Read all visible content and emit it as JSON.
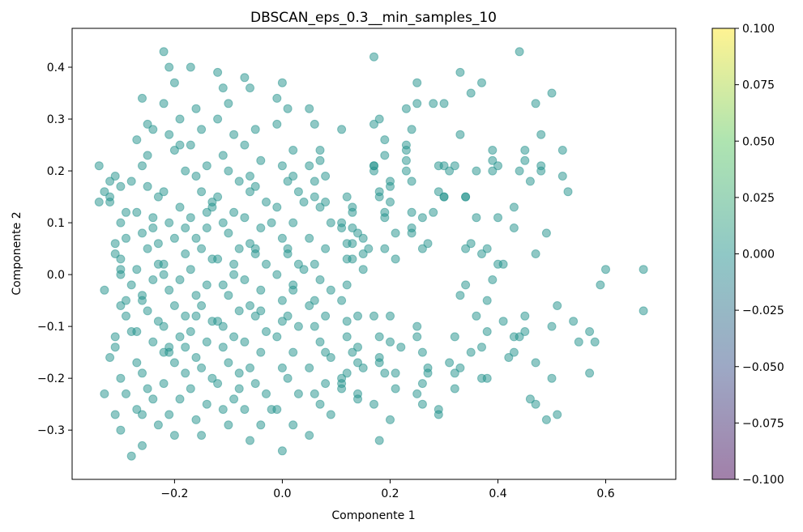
{
  "chart_data": {
    "type": "scatter",
    "title": "DBSCAN_eps_0.3__min_samples_10",
    "xlabel": "Componente 1",
    "ylabel": "Componente 2",
    "xlim": [
      -0.39,
      0.73
    ],
    "ylim": [
      -0.395,
      0.475
    ],
    "xticks": [
      -0.2,
      0.0,
      0.2,
      0.4,
      0.6
    ],
    "xtick_labels": [
      "−0.2",
      "0.0",
      "0.2",
      "0.4",
      "0.6"
    ],
    "yticks": [
      0.4,
      0.3,
      0.2,
      0.1,
      0.0,
      -0.1,
      -0.2,
      -0.3
    ],
    "ytick_labels": [
      "0.4",
      "0.3",
      "0.2",
      "0.1",
      "0.0",
      "−0.1",
      "−0.2",
      "−0.3"
    ],
    "grid": false,
    "point_color": "#21918c",
    "point_alpha": 0.5,
    "colorbar": {
      "colormap": "viridis",
      "range": [
        -0.1,
        0.1
      ],
      "ticks": [
        0.1,
        0.075,
        0.05,
        0.025,
        0.0,
        -0.025,
        -0.05,
        -0.075,
        -0.1
      ],
      "tick_labels": [
        "0.100",
        "0.075",
        "0.050",
        "0.025",
        "0.000",
        "−0.025",
        "−0.050",
        "−0.075",
        "−0.100"
      ],
      "colors": [
        "#440154",
        "#3b528b",
        "#21918c",
        "#5ec962",
        "#fde725"
      ]
    },
    "series": [
      {
        "x": [
          -0.34,
          -0.32,
          -0.33,
          -0.31,
          -0.3,
          -0.32,
          -0.29,
          -0.31,
          -0.3,
          -0.28,
          -0.33,
          -0.3,
          -0.29,
          -0.31,
          -0.28,
          -0.32,
          -0.3,
          -0.29,
          -0.31,
          -0.3,
          -0.32,
          -0.29,
          -0.3,
          -0.31,
          -0.33,
          -0.3,
          -0.29,
          -0.31,
          -0.28,
          -0.27,
          -0.26,
          -0.25,
          -0.27,
          -0.24,
          -0.26,
          -0.25,
          -0.23,
          -0.27,
          -0.24,
          -0.26,
          -0.25,
          -0.23,
          -0.27,
          -0.24,
          -0.26,
          -0.25,
          -0.23,
          -0.27,
          -0.24,
          -0.22,
          -0.26,
          -0.25,
          -0.24,
          -0.27,
          -0.23,
          -0.26,
          -0.25,
          -0.28,
          -0.24,
          -0.26,
          -0.22,
          -0.21,
          -0.2,
          -0.22,
          -0.19,
          -0.21,
          -0.2,
          -0.18,
          -0.22,
          -0.19,
          -0.21,
          -0.2,
          -0.18,
          -0.22,
          -0.19,
          -0.21,
          -0.2,
          -0.18,
          -0.22,
          -0.19,
          -0.21,
          -0.2,
          -0.18,
          -0.22,
          -0.19,
          -0.21,
          -0.2,
          -0.23,
          -0.19,
          -0.21,
          -0.17,
          -0.16,
          -0.15,
          -0.17,
          -0.14,
          -0.16,
          -0.15,
          -0.13,
          -0.17,
          -0.14,
          -0.16,
          -0.15,
          -0.13,
          -0.17,
          -0.14,
          -0.16,
          -0.15,
          -0.13,
          -0.17,
          -0.14,
          -0.16,
          -0.15,
          -0.13,
          -0.17,
          -0.14,
          -0.16,
          -0.15,
          -0.18,
          -0.14,
          -0.16,
          -0.12,
          -0.11,
          -0.1,
          -0.12,
          -0.09,
          -0.11,
          -0.1,
          -0.08,
          -0.12,
          -0.09,
          -0.11,
          -0.1,
          -0.08,
          -0.12,
          -0.09,
          -0.11,
          -0.1,
          -0.08,
          -0.12,
          -0.09,
          -0.11,
          -0.1,
          -0.08,
          -0.12,
          -0.09,
          -0.11,
          -0.1,
          -0.13,
          -0.09,
          -0.11,
          -0.07,
          -0.06,
          -0.05,
          -0.07,
          -0.04,
          -0.06,
          -0.05,
          -0.03,
          -0.07,
          -0.04,
          -0.06,
          -0.05,
          -0.03,
          -0.07,
          -0.04,
          -0.06,
          -0.05,
          -0.03,
          -0.07,
          -0.04,
          -0.06,
          -0.05,
          -0.03,
          -0.07,
          -0.04,
          -0.06,
          -0.05,
          -0.02,
          -0.04,
          -0.06,
          -0.01,
          0.0,
          0.01,
          -0.01,
          0.02,
          0.0,
          0.01,
          0.03,
          -0.01,
          0.02,
          0.0,
          0.01,
          0.03,
          -0.01,
          0.02,
          0.0,
          0.01,
          0.03,
          -0.01,
          0.02,
          0.0,
          0.01,
          0.03,
          -0.01,
          0.02,
          0.0,
          0.01,
          0.04,
          0.02,
          0.0,
          0.05,
          0.06,
          0.07,
          0.05,
          0.08,
          0.06,
          0.07,
          0.09,
          0.05,
          0.08,
          0.06,
          0.07,
          0.09,
          0.05,
          0.08,
          0.06,
          0.07,
          0.09,
          0.05,
          0.08,
          0.06,
          0.07,
          0.09,
          0.05,
          0.08,
          0.06,
          0.07,
          0.04,
          0.08,
          0.06,
          0.11,
          0.12,
          0.13,
          0.11,
          0.14,
          0.12,
          0.13,
          0.15,
          0.11,
          0.14,
          0.12,
          0.13,
          0.15,
          0.11,
          0.14,
          0.12,
          0.13,
          0.15,
          0.11,
          0.14,
          0.12,
          0.13,
          0.15,
          0.11,
          0.14,
          0.12,
          0.13,
          0.16,
          0.14,
          0.12,
          0.17,
          0.18,
          0.19,
          0.17,
          0.2,
          0.18,
          0.19,
          0.21,
          0.17,
          0.2,
          0.18,
          0.19,
          0.21,
          0.17,
          0.2,
          0.18,
          0.19,
          0.21,
          0.17,
          0.2,
          0.18,
          0.19,
          0.21,
          0.17,
          0.2,
          0.18,
          0.19,
          0.22,
          0.2,
          0.18,
          0.23,
          0.24,
          0.25,
          0.23,
          0.26,
          0.24,
          0.25,
          0.27,
          0.23,
          0.26,
          0.24,
          0.25,
          0.27,
          0.23,
          0.26,
          0.24,
          0.25,
          0.27,
          0.23,
          0.26,
          0.24,
          0.25,
          0.28,
          0.29,
          0.3,
          0.29,
          0.3,
          0.28,
          0.31,
          0.29,
          0.3,
          0.31,
          0.29,
          0.3,
          0.32,
          0.33,
          0.34,
          0.32,
          0.35,
          0.33,
          0.34,
          0.36,
          0.32,
          0.35,
          0.33,
          0.34,
          0.36,
          0.32,
          0.35,
          0.33,
          0.34,
          0.36,
          0.37,
          0.38,
          0.39,
          0.37,
          0.4,
          0.38,
          0.39,
          0.41,
          0.37,
          0.4,
          0.38,
          0.39,
          0.41,
          0.37,
          0.4,
          0.38,
          0.39,
          0.42,
          0.43,
          0.44,
          0.45,
          0.43,
          0.46,
          0.44,
          0.45,
          0.47,
          0.43,
          0.46,
          0.44,
          0.45,
          0.47,
          0.48,
          0.49,
          0.5,
          0.48,
          0.51,
          0.49,
          0.5,
          0.52,
          0.53,
          0.54,
          0.52,
          0.55,
          0.57,
          0.58,
          0.59,
          0.57,
          0.6,
          0.45,
          0.47,
          0.5,
          0.51,
          0.43,
          0.48,
          0.47,
          0.67,
          0.67,
          0.26,
          0.17,
          0.11,
          0.02,
          -0.02,
          -0.08,
          -0.18,
          -0.22,
          -0.26,
          -0.34,
          -0.3
        ],
        "y": [
          0.21,
          0.18,
          0.16,
          0.19,
          0.1,
          0.14,
          0.07,
          0.06,
          0.03,
          -0.02,
          -0.03,
          -0.06,
          -0.08,
          -0.12,
          -0.11,
          -0.16,
          -0.2,
          -0.23,
          -0.27,
          -0.3,
          0.15,
          0.12,
          0.0,
          -0.14,
          -0.23,
          0.17,
          -0.05,
          0.04,
          -0.35,
          -0.17,
          0.34,
          0.29,
          0.26,
          0.28,
          0.21,
          0.17,
          0.15,
          0.12,
          0.09,
          0.08,
          0.05,
          0.02,
          0.01,
          -0.01,
          -0.04,
          -0.07,
          -0.09,
          -0.11,
          -0.13,
          -0.15,
          -0.19,
          -0.22,
          -0.24,
          -0.26,
          -0.29,
          -0.33,
          0.23,
          0.18,
          0.11,
          -0.05,
          0.43,
          0.4,
          0.37,
          0.33,
          0.3,
          0.27,
          0.24,
          0.2,
          0.16,
          0.13,
          0.1,
          0.07,
          0.04,
          0.02,
          -0.01,
          -0.03,
          -0.06,
          -0.08,
          -0.1,
          -0.12,
          -0.14,
          -0.17,
          -0.19,
          -0.21,
          -0.24,
          -0.27,
          -0.31,
          0.06,
          0.25,
          -0.15,
          0.4,
          0.32,
          0.28,
          0.25,
          0.21,
          0.19,
          0.16,
          0.14,
          0.11,
          0.09,
          0.07,
          0.05,
          0.03,
          0.01,
          -0.02,
          -0.04,
          -0.06,
          -0.09,
          -0.11,
          -0.13,
          -0.16,
          -0.18,
          -0.2,
          -0.22,
          -0.25,
          -0.28,
          -0.31,
          0.09,
          0.12,
          -0.08,
          0.39,
          0.36,
          0.33,
          0.3,
          0.27,
          0.23,
          0.2,
          0.18,
          0.15,
          0.12,
          0.1,
          0.08,
          0.05,
          0.03,
          0.0,
          -0.02,
          -0.04,
          -0.07,
          -0.09,
          -0.12,
          -0.14,
          -0.17,
          -0.19,
          -0.21,
          -0.24,
          -0.26,
          -0.29,
          0.13,
          0.02,
          -0.1,
          0.38,
          0.36,
          0.28,
          0.25,
          0.22,
          0.19,
          0.17,
          0.14,
          0.11,
          0.09,
          0.06,
          0.04,
          0.02,
          -0.01,
          -0.03,
          -0.06,
          -0.08,
          -0.11,
          -0.13,
          -0.15,
          -0.18,
          -0.21,
          -0.23,
          -0.26,
          -0.29,
          -0.32,
          0.05,
          0.1,
          -0.07,
          0.16,
          0.34,
          0.37,
          0.32,
          0.29,
          0.24,
          0.21,
          0.18,
          0.16,
          0.13,
          0.1,
          0.07,
          0.05,
          0.02,
          0.0,
          -0.03,
          -0.05,
          -0.08,
          -0.1,
          -0.12,
          -0.15,
          -0.18,
          -0.2,
          -0.23,
          -0.26,
          -0.29,
          -0.34,
          0.04,
          0.14,
          0.19,
          -0.09,
          0.32,
          0.29,
          0.24,
          0.21,
          0.19,
          0.15,
          0.13,
          0.1,
          0.07,
          0.05,
          0.02,
          -0.01,
          -0.03,
          -0.06,
          -0.08,
          -0.1,
          -0.13,
          -0.16,
          -0.18,
          -0.21,
          -0.23,
          -0.25,
          -0.27,
          -0.31,
          0.14,
          -0.05,
          0.22,
          0.01,
          -0.15,
          0.18,
          0.28,
          0.15,
          0.13,
          0.1,
          0.08,
          0.06,
          0.03,
          0.01,
          -0.05,
          -0.08,
          -0.12,
          -0.15,
          -0.18,
          -0.21,
          -0.24,
          -0.02,
          0.06,
          0.04,
          -0.2,
          -0.17,
          0.03,
          0.12,
          0.07,
          -0.22,
          -0.14,
          -0.09,
          0.09,
          0.05,
          -0.23,
          -0.19,
          0.42,
          0.3,
          0.23,
          0.2,
          0.18,
          0.15,
          0.12,
          0.03,
          -0.08,
          -0.13,
          -0.16,
          -0.19,
          -0.22,
          -0.25,
          -0.28,
          -0.32,
          0.26,
          0.08,
          0.21,
          -0.08,
          0.16,
          0.11,
          -0.19,
          0.29,
          0.17,
          -0.12,
          0.05,
          -0.14,
          0.14,
          -0.17,
          0.32,
          0.28,
          0.37,
          0.2,
          0.11,
          0.08,
          -0.12,
          -0.18,
          0.25,
          -0.21,
          0.18,
          -0.1,
          0.06,
          0.24,
          -0.25,
          0.12,
          -0.23,
          -0.19,
          0.22,
          -0.15,
          0.09,
          0.33,
          0.33,
          0.21,
          0.15,
          0.16,
          0.21,
          0.12,
          -0.17,
          -0.26,
          0.15,
          0.2,
          -0.27,
          0.33,
          -0.19,
          0.39,
          0.15,
          -0.22,
          0.35,
          -0.04,
          0.05,
          0.11,
          0.21,
          -0.15,
          0.27,
          -0.02,
          -0.08,
          -0.12,
          0.06,
          -0.18,
          0.15,
          0.2,
          0.37,
          -0.11,
          0.22,
          -0.14,
          0.02,
          0.05,
          -0.01,
          0.02,
          0.04,
          0.11,
          -0.2,
          0.2,
          -0.09,
          -0.2,
          0.21,
          -0.05,
          0.24,
          -0.16,
          -0.12,
          0.2,
          0.22,
          -0.15,
          0.18,
          -0.12,
          -0.11,
          -0.17,
          0.09,
          -0.24,
          0.43,
          0.24,
          0.33,
          0.21,
          0.08,
          0.35,
          0.27,
          -0.27,
          -0.28,
          -0.1,
          0.24,
          0.16,
          -0.09,
          0.19,
          -0.13,
          -0.11,
          -0.13,
          -0.02,
          -0.19,
          0.01,
          -0.08,
          -0.25,
          -0.2,
          -0.06,
          0.13,
          0.2,
          0.04,
          0.01,
          -0.07,
          0.05,
          0.21,
          0.09,
          -0.02,
          -0.26,
          -0.22,
          -0.14,
          0.0,
          -0.27,
          0.14,
          0.01
        ]
      }
    ]
  }
}
